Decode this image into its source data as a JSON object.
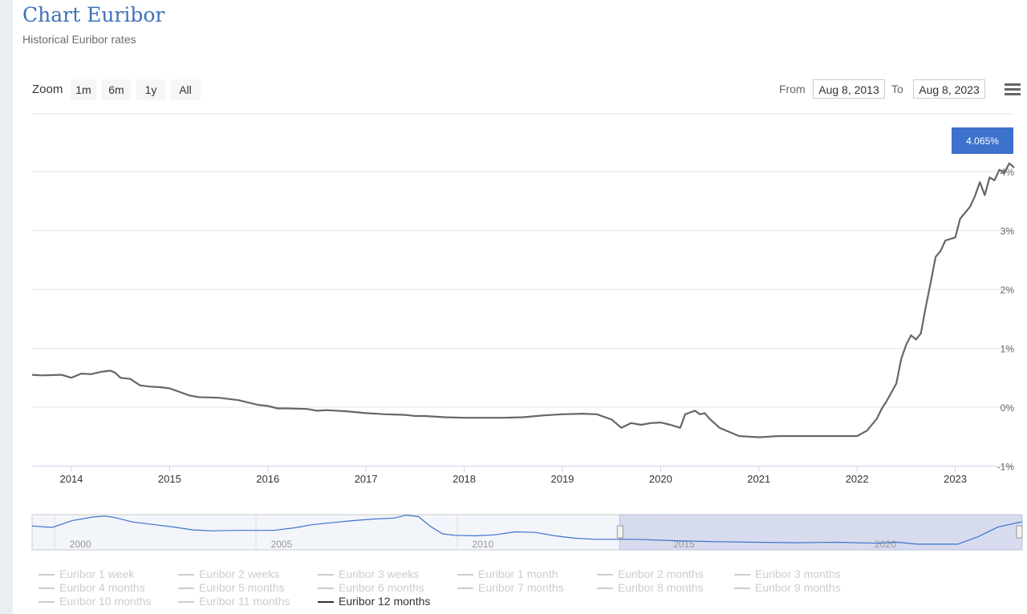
{
  "header": {
    "title": "Chart Euribor",
    "subtitle": "Historical Euribor rates"
  },
  "toolbar": {
    "zoom_label": "Zoom",
    "zoom_buttons": [
      "1m",
      "6m",
      "1y",
      "All"
    ],
    "from_label": "From",
    "from_value": "Aug 8, 2013",
    "to_label": "To",
    "to_value": "Aug 8, 2023"
  },
  "chart_data": {
    "type": "line",
    "series_color": "#666666",
    "tooltip": "4.065%",
    "tooltip_color": "#3d72cc",
    "x_ticks": [
      "2014",
      "2015",
      "2016",
      "2017",
      "2018",
      "2019",
      "2020",
      "2021",
      "2022",
      "2023"
    ],
    "y_ticks": [
      "4%",
      "3%",
      "2%",
      "1%",
      "0%",
      "-1%"
    ],
    "xlim": [
      2013.6,
      2023.6
    ],
    "ylim": [
      -1,
      4.5
    ],
    "series": [
      {
        "x": [
          2013.6,
          2013.7,
          2013.9,
          2014.0,
          2014.1,
          2014.2,
          2014.3,
          2014.4,
          2014.45,
          2014.5,
          2014.6,
          2014.7,
          2014.8,
          2014.9,
          2015.0,
          2015.1,
          2015.2,
          2015.3,
          2015.5,
          2015.7,
          2015.9,
          2016.0,
          2016.1,
          2016.2,
          2016.4,
          2016.5,
          2016.6,
          2016.8,
          2017.0,
          2017.2,
          2017.4,
          2017.5,
          2017.6,
          2017.8,
          2018.0,
          2018.2,
          2018.4,
          2018.6,
          2018.8,
          2019.0,
          2019.2,
          2019.35,
          2019.5,
          2019.6,
          2019.7,
          2019.8,
          2019.9,
          2020.0,
          2020.1,
          2020.2,
          2020.25,
          2020.35,
          2020.4,
          2020.45,
          2020.5,
          2020.6,
          2020.7,
          2020.8,
          2020.9,
          2021.0,
          2021.1,
          2021.2,
          2021.4,
          2021.6,
          2021.8,
          2021.9,
          2022.0,
          2022.1,
          2022.2,
          2022.25,
          2022.3,
          2022.4,
          2022.45,
          2022.5,
          2022.55,
          2022.6,
          2022.65,
          2022.7,
          2022.75,
          2022.8,
          2022.85,
          2022.9,
          2023.0,
          2023.05,
          2023.1,
          2023.15,
          2023.2,
          2023.25,
          2023.3,
          2023.35,
          2023.4,
          2023.45,
          2023.5,
          2023.55,
          2023.6
        ],
        "values": [
          0.55,
          0.54,
          0.55,
          0.5,
          0.57,
          0.56,
          0.6,
          0.62,
          0.58,
          0.5,
          0.48,
          0.37,
          0.35,
          0.34,
          0.32,
          0.26,
          0.2,
          0.17,
          0.16,
          0.12,
          0.04,
          0.02,
          -0.02,
          -0.02,
          -0.03,
          -0.06,
          -0.05,
          -0.07,
          -0.1,
          -0.12,
          -0.13,
          -0.15,
          -0.15,
          -0.17,
          -0.18,
          -0.18,
          -0.18,
          -0.17,
          -0.14,
          -0.12,
          -0.11,
          -0.12,
          -0.21,
          -0.35,
          -0.27,
          -0.3,
          -0.27,
          -0.26,
          -0.3,
          -0.35,
          -0.12,
          -0.06,
          -0.12,
          -0.1,
          -0.2,
          -0.35,
          -0.42,
          -0.49,
          -0.5,
          -0.51,
          -0.5,
          -0.49,
          -0.49,
          -0.49,
          -0.49,
          -0.49,
          -0.49,
          -0.4,
          -0.2,
          -0.03,
          0.1,
          0.4,
          0.82,
          1.06,
          1.22,
          1.15,
          1.25,
          1.7,
          2.12,
          2.55,
          2.65,
          2.83,
          2.88,
          3.2,
          3.3,
          3.4,
          3.58,
          3.82,
          3.6,
          3.9,
          3.85,
          4.03,
          3.98,
          4.14,
          4.065
        ]
      }
    ]
  },
  "navigator": {
    "x_ticks": [
      "2000",
      "2005",
      "2010",
      "2015",
      "2020"
    ],
    "line_color": "#3d72cc",
    "selection_color": "#d6dcee",
    "xlim": [
      1999,
      2023.6
    ],
    "selection": [
      2013.6,
      2023.6
    ],
    "x": [
      1999.0,
      1999.5,
      2000.0,
      2000.5,
      2000.8,
      2001.0,
      2001.5,
      2002.0,
      2002.5,
      2003.0,
      2003.5,
      2004.0,
      2004.5,
      2005.0,
      2005.5,
      2006.0,
      2006.5,
      2007.0,
      2007.5,
      2008.0,
      2008.3,
      2008.6,
      2008.9,
      2009.2,
      2009.5,
      2010.0,
      2010.5,
      2011.0,
      2011.5,
      2012.0,
      2012.5,
      2013.0,
      2014.0,
      2015.0,
      2016.0,
      2017.0,
      2018.0,
      2019.0,
      2020.0,
      2020.5,
      2021.0,
      2022.0,
      2022.5,
      2023.0,
      2023.6
    ],
    "values": [
      3.2,
      2.9,
      4.3,
      5.0,
      5.2,
      5.0,
      4.0,
      3.5,
      3.0,
      2.4,
      2.2,
      2.3,
      2.3,
      2.3,
      2.8,
      3.5,
      3.9,
      4.3,
      4.6,
      4.8,
      5.4,
      5.1,
      3.1,
      1.6,
      1.3,
      1.2,
      1.4,
      2.0,
      1.9,
      1.2,
      0.7,
      0.5,
      0.5,
      0.2,
      0.0,
      -0.1,
      -0.2,
      -0.1,
      -0.3,
      -0.1,
      -0.5,
      -0.5,
      1.0,
      3.0,
      4.06
    ]
  },
  "legend": {
    "items": [
      "Euribor 1 week",
      "Euribor 2 weeks",
      "Euribor 3 weeks",
      "Euribor 1 month",
      "Euribor 2 months",
      "Euribor 3 months",
      "Euribor 4 months",
      "Euribor 5 months",
      "Euribor 6 months",
      "Euribor 7 months",
      "Euribor 8 months",
      "Euribor 9 months",
      "Euribor 10 months",
      "Euribor 11 months",
      "Euribor 12 months"
    ],
    "active": "Euribor 12 months"
  }
}
